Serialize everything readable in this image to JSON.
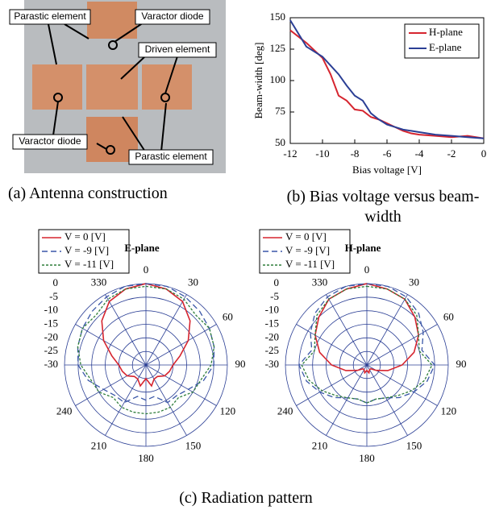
{
  "figure_a": {
    "labels": [
      "Parastic element",
      "Varactor diode",
      "Driven element",
      "Varactor diode",
      "Parastic element"
    ],
    "caption": "(a) Antenna construction"
  },
  "chart_data": [
    {
      "type": "line",
      "caption": "(b) Bias voltage versus beam-width",
      "xlabel": "Bias voltage [V]",
      "ylabel": "Beam-width [deg]",
      "x": [
        -12,
        -11,
        -10,
        -9.5,
        -9,
        -8.5,
        -8,
        -7.5,
        -7,
        -6.5,
        -6,
        -5.5,
        -5,
        -4.5,
        -4,
        -3,
        -2,
        -1,
        0
      ],
      "series": [
        {
          "name": "H-plane",
          "color": "#d6252f",
          "values": [
            140,
            130,
            118,
            105,
            88,
            84,
            77,
            76,
            71,
            69,
            66,
            63,
            60,
            58,
            57,
            56,
            55,
            56,
            54
          ]
        },
        {
          "name": "E-plane",
          "color": "#2b3f95",
          "values": [
            148,
            127,
            119,
            112,
            105,
            96,
            88,
            84,
            74,
            69,
            65,
            63,
            61,
            60,
            59,
            57,
            56,
            55,
            54
          ]
        }
      ],
      "xlim": [
        -12,
        0
      ],
      "xticks": [
        -12,
        -10,
        -8,
        -6,
        -4,
        -2,
        0
      ],
      "ylim": [
        50,
        150
      ],
      "yticks": [
        50,
        75,
        100,
        125,
        150
      ],
      "legend": "upper right"
    },
    {
      "type": "polar",
      "title": "E-plane",
      "theta": [
        0,
        15,
        30,
        45,
        60,
        75,
        90,
        105,
        120,
        135,
        150,
        165,
        180,
        195,
        210,
        225,
        240,
        255,
        270,
        285,
        300,
        315,
        330,
        345
      ],
      "angle_ticks": [
        0,
        30,
        60,
        90,
        120,
        150,
        180,
        210,
        240,
        330
      ],
      "rlim": [
        -30,
        0
      ],
      "rticks": [
        0,
        -5,
        -10,
        -15,
        -20,
        -25,
        -30
      ],
      "series": [
        {
          "name": "V = 0 [V]",
          "color": "#d6252f",
          "linestyle": "solid",
          "values": [
            0,
            -1,
            -3,
            -7,
            -12,
            -17,
            -20,
            -21,
            -22,
            -24,
            -24,
            -22,
            -25,
            -22,
            -24,
            -24,
            -22,
            -21,
            -20,
            -17,
            -12,
            -7,
            -3,
            -1
          ]
        },
        {
          "name": "V = -9 [V]",
          "color": "#3a57a8",
          "linestyle": "dashed",
          "values": [
            0,
            0,
            -1,
            -2,
            -3,
            -4,
            -5,
            -8,
            -12,
            -14,
            -14,
            -18,
            -17,
            -18,
            -14,
            -14,
            -12,
            -8,
            -5,
            -4,
            -3,
            -2,
            -1,
            0
          ]
        },
        {
          "name": "V = -11 [V]",
          "color": "#2e7d3a",
          "linestyle": "dotted",
          "values": [
            -1,
            -1,
            -2,
            -4,
            -3,
            -4,
            -6,
            -9,
            -10,
            -13,
            -12,
            -12,
            -12,
            -12,
            -12,
            -13,
            -10,
            -9,
            -6,
            -4,
            -3,
            -4,
            -2,
            -1
          ]
        }
      ]
    },
    {
      "type": "polar",
      "title": "H-plane",
      "theta": [
        0,
        15,
        30,
        45,
        60,
        75,
        90,
        105,
        120,
        135,
        150,
        165,
        180,
        195,
        210,
        225,
        240,
        255,
        270,
        285,
        300,
        315,
        330,
        345
      ],
      "angle_ticks": [
        0,
        30,
        60,
        90,
        120,
        150,
        180,
        210,
        240,
        330
      ],
      "rlim": [
        -30,
        0
      ],
      "rticks": [
        0,
        -5,
        -10,
        -15,
        -20,
        -25,
        -30
      ],
      "series": [
        {
          "name": "V = 0 [V]",
          "color": "#d6252f",
          "linestyle": "solid",
          "values": [
            0,
            -1,
            -2,
            -5,
            -8,
            -12,
            -17,
            -22,
            -26,
            -28,
            -28,
            -27,
            -28,
            -27,
            -28,
            -28,
            -26,
            -22,
            -17,
            -12,
            -8,
            -5,
            -2,
            -1
          ]
        },
        {
          "name": "V = -9 [V]",
          "color": "#3a57a8",
          "linestyle": "dashed",
          "values": [
            0,
            0,
            -1,
            -3,
            -6,
            -9,
            -5,
            -7,
            -10,
            -13,
            -16,
            -17,
            -16,
            -17,
            -16,
            -13,
            -10,
            -7,
            -5,
            -9,
            -6,
            -3,
            -1,
            0
          ]
        },
        {
          "name": "V = -11 [V]",
          "color": "#2e7d3a",
          "linestyle": "dotted",
          "values": [
            -1,
            -1,
            -2,
            -4,
            -8,
            -10,
            -6,
            -8,
            -11,
            -14,
            -16,
            -17,
            -16,
            -17,
            -16,
            -14,
            -11,
            -8,
            -6,
            -10,
            -8,
            -4,
            -2,
            -1
          ]
        }
      ]
    }
  ],
  "caption_c": "(c) Radiation pattern"
}
